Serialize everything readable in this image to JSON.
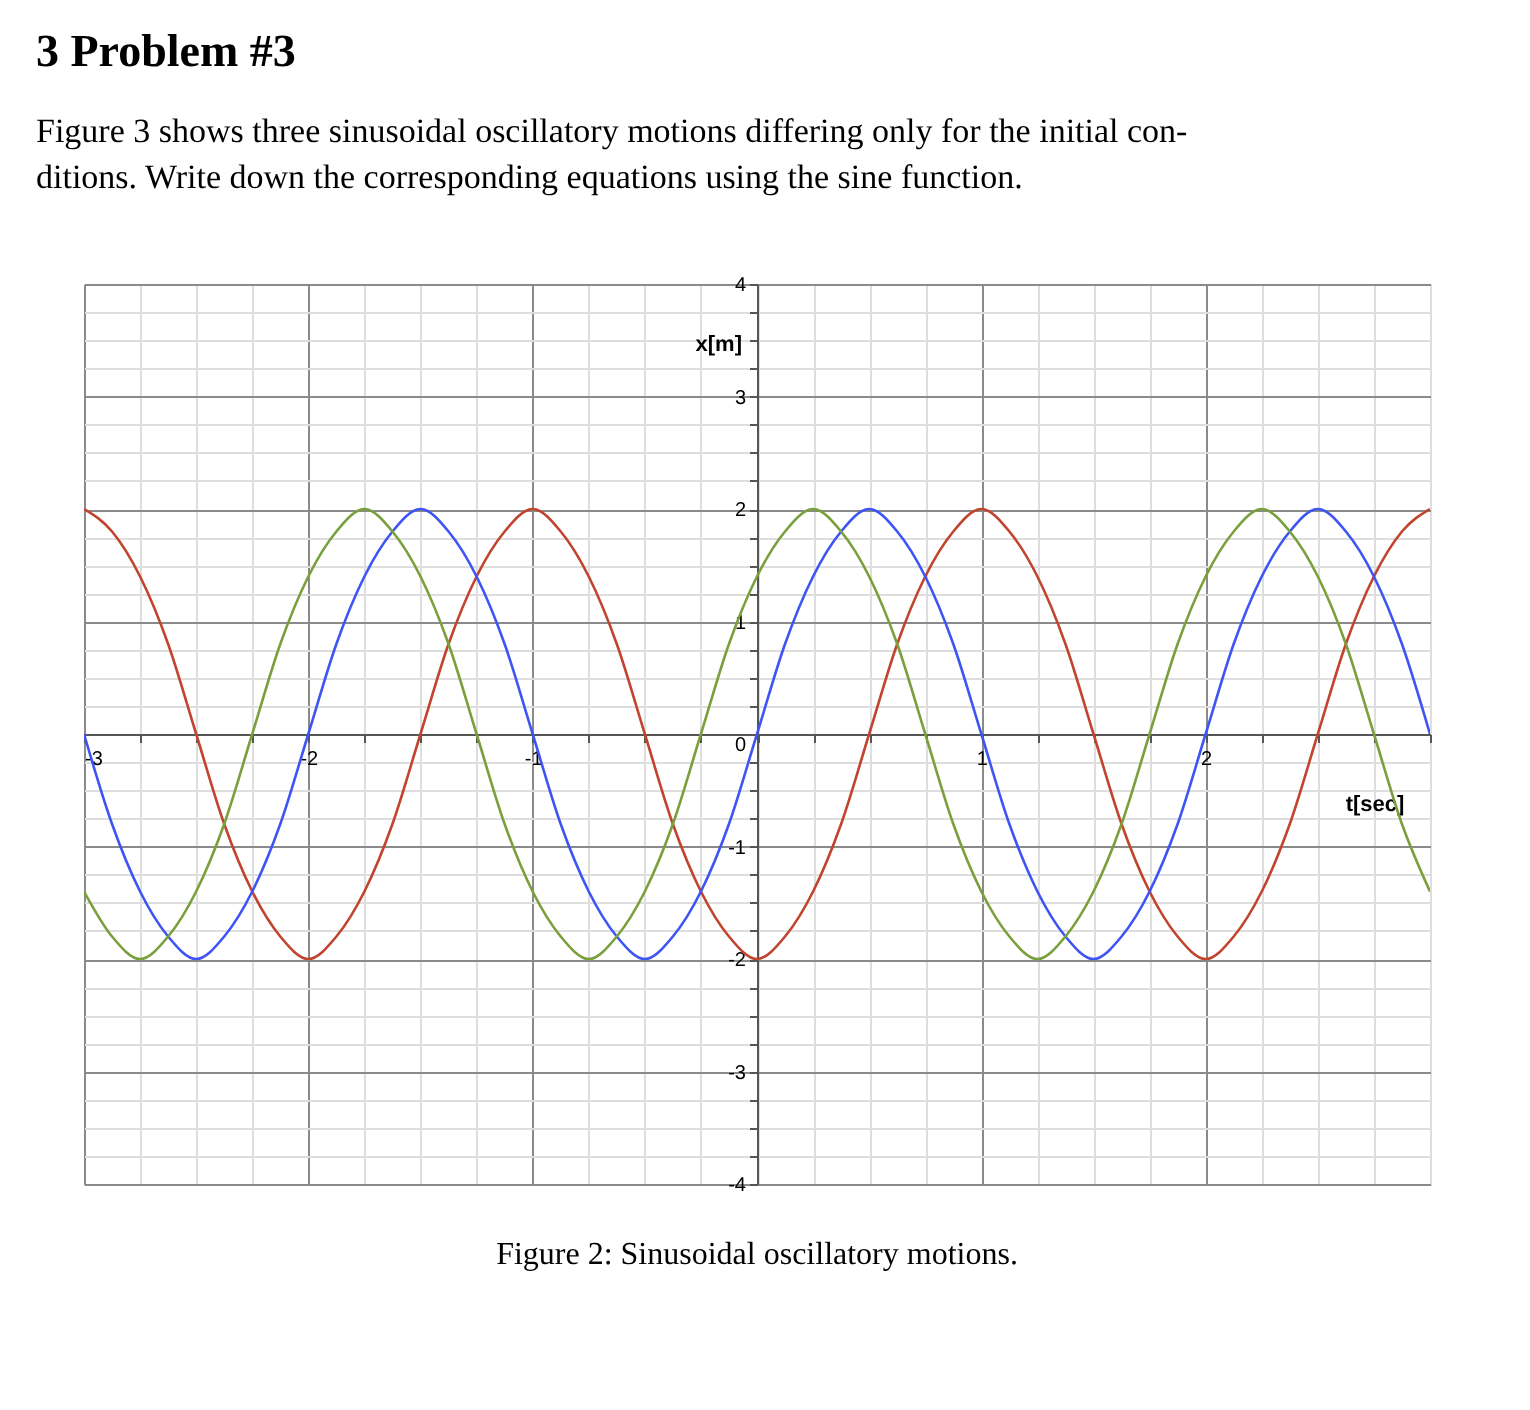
{
  "chart_data": {
    "type": "line",
    "title": "3   Problem #3",
    "subtitle": [
      "Figure 3 shows three sinusoidal oscillatory motions differing only for the initial con-",
      "ditions. Write down the corresponding equations using the sine function."
    ],
    "xlabel": "t[sec]",
    "ylabel": "x[m]",
    "annotations": [
      "Figure 2: Sinusoidal oscillatory motions."
    ],
    "x": [
      -3,
      -2.875,
      -2.75,
      -2.625,
      -2.5,
      -2.375,
      -2.25,
      -2.125,
      -2,
      -1.875,
      -1.75,
      -1.625,
      -1.5,
      -1.375,
      -1.25,
      -1.125,
      -1,
      -0.875,
      -0.75,
      -0.625,
      -0.5,
      -0.375,
      -0.25,
      -0.125,
      0,
      0.125,
      0.25,
      0.375,
      0.5,
      0.625,
      0.75,
      0.875,
      1,
      1.125,
      1.25,
      1.375,
      1.5,
      1.625,
      1.75,
      1.875,
      2,
      2.125,
      2.25,
      2.375,
      2.5,
      2.625,
      2.75,
      2.875,
      3
    ],
    "series": [
      {
        "color": "#c0442e",
        "values": [
          2,
          1.8,
          1.4,
          0.8,
          0,
          -0.8,
          -1.4,
          -1.8,
          -2,
          -1.8,
          -1.4,
          -0.8,
          0,
          0.8,
          1.4,
          1.8,
          2,
          1.8,
          1.4,
          0.8,
          0,
          -0.8,
          -1.4,
          -1.8,
          -2,
          -1.8,
          -1.4,
          -0.8,
          0,
          0.8,
          1.4,
          1.8,
          2,
          1.8,
          1.4,
          0.8,
          0,
          -0.8,
          -1.4,
          -1.8,
          -2,
          -1.8,
          -1.4,
          -0.8,
          0,
          0.8,
          1.4,
          1.8,
          2
        ]
      },
      {
        "color": "#3f54f5",
        "values": [
          0,
          -0.8,
          -1.4,
          -1.8,
          -2,
          -1.8,
          -1.4,
          -0.8,
          0,
          0.8,
          1.4,
          1.8,
          2,
          1.8,
          1.4,
          0.8,
          0,
          -0.8,
          -1.4,
          -1.8,
          -2,
          -1.8,
          -1.4,
          -0.8,
          0,
          0.8,
          1.4,
          1.8,
          2,
          1.8,
          1.4,
          0.8,
          0,
          -0.8,
          -1.4,
          -1.8,
          -2,
          -1.8,
          -1.4,
          -0.8,
          0,
          0.8,
          1.4,
          1.8,
          2,
          1.8,
          1.4,
          0.8,
          0
        ]
      },
      {
        "color": "#79a03c",
        "values": [
          -1.4,
          -1.8,
          -2,
          -1.8,
          -1.4,
          -0.8,
          0,
          0.8,
          1.4,
          1.8,
          2,
          1.8,
          1.4,
          0.8,
          0,
          -0.8,
          -1.4,
          -1.8,
          -2,
          -1.8,
          -1.4,
          -0.8,
          0,
          0.8,
          1.4,
          1.8,
          2,
          1.8,
          1.4,
          0.8,
          0,
          -0.8,
          -1.4,
          -1.8,
          -2,
          -1.8,
          -1.4,
          -0.8,
          0,
          0.8,
          1.4,
          1.8,
          2,
          1.8,
          1.4,
          0.8,
          0,
          -0.8,
          -1.4
        ]
      }
    ],
    "xlim": [
      -3,
      3
    ],
    "ylim": [
      -4,
      4
    ],
    "xticks": [
      -3,
      {
        "value": -2.75,
        "label": null
      },
      {
        "value": -2.5,
        "label": null
      },
      {
        "value": -2.25,
        "label": null
      },
      -2,
      {
        "value": -1.75,
        "label": null
      },
      {
        "value": -1.5,
        "label": null
      },
      {
        "value": -1.25,
        "label": null
      },
      -1,
      {
        "value": -0.75,
        "label": null
      },
      {
        "value": -0.5,
        "label": null
      },
      {
        "value": -0.25,
        "label": null
      },
      {
        "value": 0,
        "label": null
      },
      {
        "value": 0.25,
        "label": null
      },
      {
        "value": 0.5,
        "label": null
      },
      {
        "value": 0.75,
        "label": null
      },
      1,
      {
        "value": 1.25,
        "label": null
      },
      {
        "value": 1.5,
        "label": null
      },
      {
        "value": 1.75,
        "label": null
      },
      2,
      {
        "value": 2.25,
        "label": null
      },
      {
        "value": 2.5,
        "label": null
      },
      {
        "value": 2.75,
        "label": null
      },
      {
        "value": 3,
        "label": null
      }
    ],
    "yticks": [
      -4,
      {
        "value": -3.75,
        "label": null
      },
      {
        "value": -3.5,
        "label": null
      },
      {
        "value": -3.25,
        "label": null
      },
      -3,
      {
        "value": -2.75,
        "label": null
      },
      {
        "value": -2.5,
        "label": null
      },
      {
        "value": -2.25,
        "label": null
      },
      -2,
      {
        "value": -1.75,
        "label": null
      },
      {
        "value": -1.5,
        "label": null
      },
      {
        "value": -1.25,
        "label": null
      },
      -1,
      {
        "value": -0.75,
        "label": null
      },
      {
        "value": -0.5,
        "label": null
      },
      {
        "value": -0.25,
        "label": null
      },
      0,
      {
        "value": 0.25,
        "label": null
      },
      {
        "value": 0.5,
        "label": null
      },
      {
        "value": 0.75,
        "label": null
      },
      1,
      {
        "value": 1.25,
        "label": null
      },
      {
        "value": 1.5,
        "label": null
      },
      {
        "value": 1.75,
        "label": null
      },
      2,
      {
        "value": 2.25,
        "label": null
      },
      {
        "value": 2.5,
        "label": null
      },
      {
        "value": 2.75,
        "label": null
      },
      3,
      {
        "value": 3.25,
        "label": null
      },
      {
        "value": 3.5,
        "label": null
      },
      {
        "value": 3.75,
        "label": null
      },
      4
    ],
    "grid": true,
    "marker": "none",
    "line_style": "solid"
  }
}
